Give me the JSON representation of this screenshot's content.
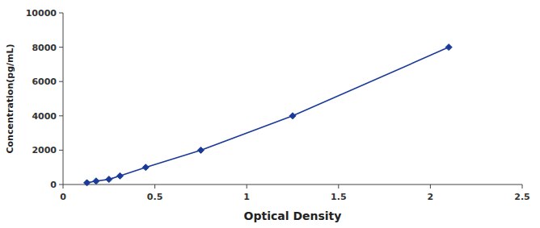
{
  "chart_data": {
    "type": "line",
    "x": [
      0.13,
      0.18,
      0.25,
      0.31,
      0.45,
      0.75,
      1.25,
      2.1
    ],
    "values": [
      100,
      200,
      300,
      500,
      1000,
      2000,
      4000,
      8000
    ],
    "color": "#1a3a9a",
    "marker": "diamond",
    "line_style": "solid",
    "xlabel": "Optical Density",
    "ylabel": "Concentration(pg/mL)",
    "xlim": [
      0,
      2.5
    ],
    "ylim": [
      0,
      10000
    ],
    "xticks": [
      0,
      0.5,
      1.0,
      1.5,
      2.0,
      2.5
    ],
    "yticks": [
      0,
      2000,
      4000,
      6000,
      8000,
      10000
    ],
    "grid": false
  }
}
